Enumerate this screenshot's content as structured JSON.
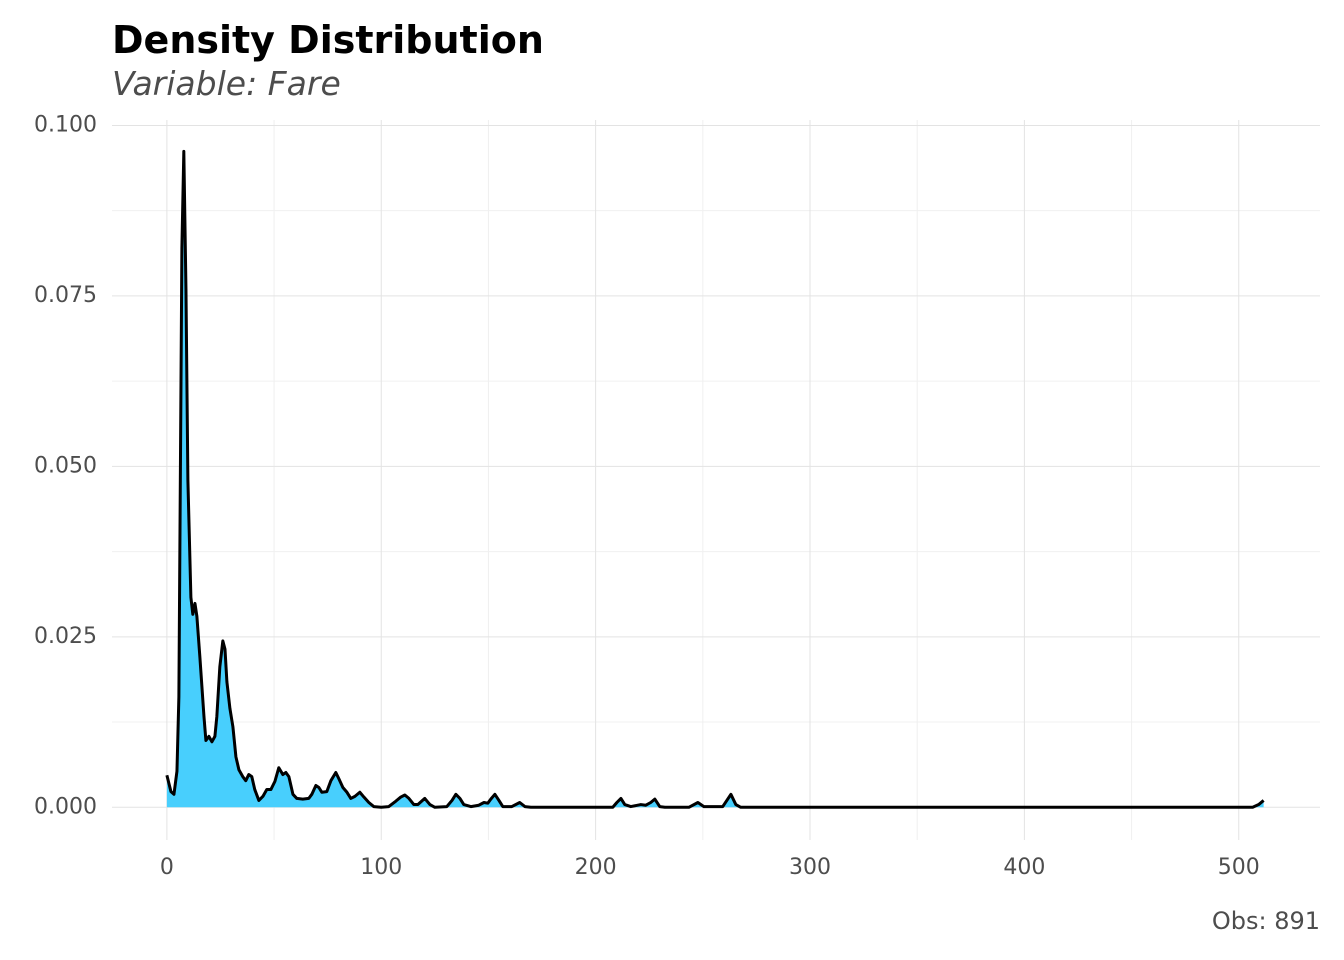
{
  "chart_data": {
    "type": "area",
    "title": "Density Distribution",
    "subtitle": "Variable: Fare",
    "caption": "Obs: 891",
    "x": [
      0,
      1.9,
      3.3,
      4.7,
      5.6,
      7.0,
      7.9,
      8.9,
      9.8,
      11.2,
      12.1,
      13.1,
      14.0,
      15.4,
      17.3,
      18.2,
      19.6,
      21.0,
      22.4,
      23.3,
      24.7,
      26.1,
      27.1,
      28.0,
      29.4,
      30.8,
      32.2,
      33.6,
      35.4,
      36.8,
      38.2,
      39.6,
      41.0,
      42.9,
      44.8,
      46.6,
      48.5,
      50.4,
      52.2,
      54.1,
      55.5,
      56.9,
      58.8,
      60.6,
      63.4,
      66.2,
      67.6,
      69.5,
      70.9,
      72.3,
      74.6,
      76.5,
      78.8,
      80.2,
      82.1,
      84.0,
      85.8,
      87.7,
      90.0,
      91.9,
      94.2,
      96.5,
      100,
      103.5,
      106.8,
      109.1,
      111,
      112.9,
      115.2,
      117.1,
      120.3,
      122.7,
      125.0,
      130.6,
      133,
      134.8,
      136.7,
      138.5,
      141.8,
      145.5,
      147.9,
      149.7,
      151.1,
      153,
      154.9,
      156.7,
      160.9,
      164.6,
      167,
      169.8,
      208,
      209.9,
      211.8,
      213.6,
      216.4,
      221.1,
      223.4,
      225.7,
      227.6,
      229.9,
      232.3,
      243.5,
      247.7,
      250.5,
      259.3,
      261.2,
      263.1,
      265.4,
      267.7,
      506.5,
      509.3,
      511.6
    ],
    "values": [
      0.0047,
      0.0023,
      0.0019,
      0.0053,
      0.0162,
      0.082,
      0.0962,
      0.076,
      0.048,
      0.0308,
      0.0283,
      0.0299,
      0.028,
      0.022,
      0.0133,
      0.0098,
      0.0104,
      0.0096,
      0.0104,
      0.0133,
      0.0206,
      0.0244,
      0.0232,
      0.0184,
      0.0145,
      0.0118,
      0.0074,
      0.0055,
      0.0045,
      0.0039,
      0.0048,
      0.0045,
      0.0026,
      0.001,
      0.0016,
      0.0026,
      0.0026,
      0.0038,
      0.0058,
      0.0048,
      0.0051,
      0.0045,
      0.0019,
      0.0013,
      0.0012,
      0.0013,
      0.0019,
      0.0032,
      0.0029,
      0.0022,
      0.0023,
      0.0039,
      0.0051,
      0.0042,
      0.0029,
      0.0022,
      0.0013,
      0.0016,
      0.0022,
      0.0015,
      0.0007,
      0.0001,
      0,
      0.0001,
      0.0009,
      0.0015,
      0.0018,
      0.0013,
      0.0004,
      0.0004,
      0.0013,
      0.0004,
      0,
      0.0001,
      0.001,
      0.0019,
      0.0013,
      0.0004,
      0.0001,
      0.0003,
      0.0007,
      0.0006,
      0.0012,
      0.0019,
      0.001,
      0.0001,
      0.0001,
      0.0007,
      0.0001,
      0,
      0,
      0.0007,
      0.0013,
      0.0004,
      0.0001,
      0.0004,
      0.0003,
      0.0007,
      0.0012,
      0.0001,
      0,
      0,
      0.0007,
      0.0001,
      0.0001,
      0.001,
      0.0019,
      0.0004,
      0,
      0,
      0.0004,
      0.001
    ],
    "color": "#48cffd",
    "line_color": "#000000",
    "xlim": [
      -25.6,
      537.9
    ],
    "ylim": [
      -0.0048,
      0.1008
    ],
    "xticks": [
      0,
      100,
      200,
      300,
      400,
      500
    ],
    "x_minor_ticks": [
      50,
      150,
      250,
      350,
      450
    ],
    "yticks": [
      {
        "value": 0,
        "label": "0.000"
      },
      {
        "value": 0.025,
        "label": "0.025"
      },
      {
        "value": 0.05,
        "label": "0.050"
      },
      {
        "value": 0.075,
        "label": "0.075"
      },
      {
        "value": 0.1,
        "label": "0.100"
      }
    ],
    "y_minor_ticks": [
      0.0125,
      0.0375,
      0.0625,
      0.0875
    ],
    "grid": true
  }
}
